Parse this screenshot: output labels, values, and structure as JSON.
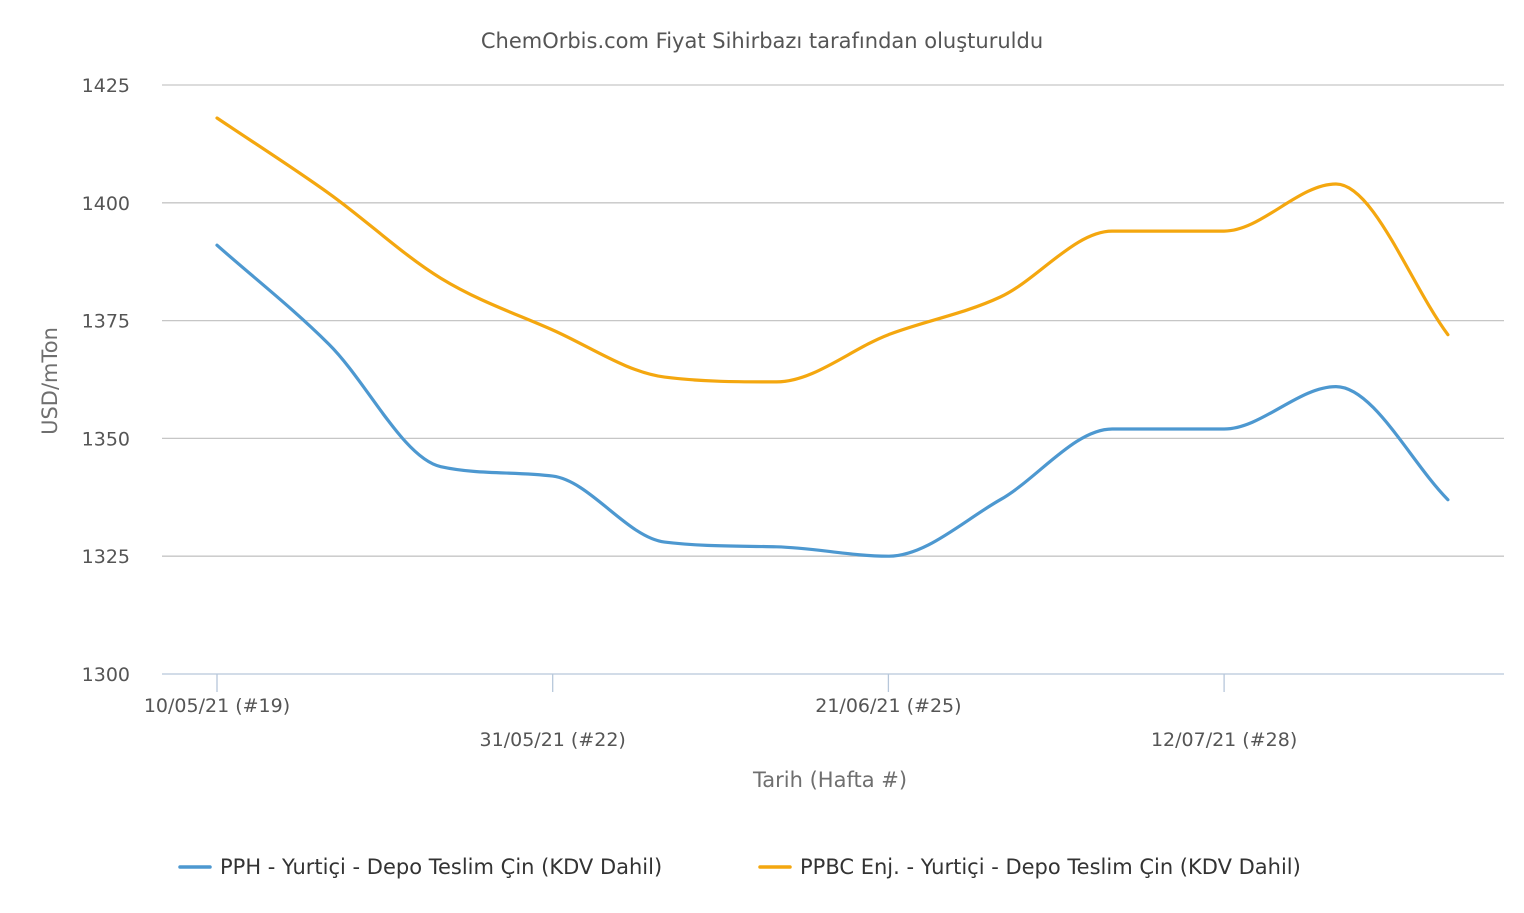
{
  "chart_data": {
    "type": "line",
    "title": "ChemOrbis.com Fiyat Sihirbazı tarafından oluşturuldu",
    "xlabel": "Tarih (Hafta #)",
    "ylabel": "USD/mTon",
    "ylim": [
      1300,
      1425
    ],
    "yticks": [
      1300,
      1325,
      1350,
      1375,
      1400,
      1425
    ],
    "grid": true,
    "legend_position": "bottom",
    "x_tick_labels": [
      {
        "week": 19,
        "label": "10/05/21 (#19)"
      },
      {
        "week": 22,
        "label": "31/05/21 (#22)"
      },
      {
        "week": 25,
        "label": "21/06/21 (#25)"
      },
      {
        "week": 28,
        "label": "12/07/21 (#28)"
      }
    ],
    "x": [
      19,
      20,
      21,
      22,
      23,
      24,
      25,
      26,
      27,
      28,
      29,
      30
    ],
    "series": [
      {
        "name": "PPH - Yurtiçi - Depo Teslim Çin (KDV Dahil)",
        "color": "#4d98d0",
        "values": [
          1391,
          1370,
          1344,
          1342,
          1328,
          1327,
          1325,
          1337,
          1352,
          1352,
          1361,
          1337
        ]
      },
      {
        "name": "PPBC Enj. - Yurtiçi - Depo Teslim Çin (KDV Dahil)",
        "color": "#f4a70f",
        "values": [
          1418,
          1402,
          1384,
          1373,
          1363,
          1362,
          1372,
          1380,
          1394,
          1394,
          1404,
          1372
        ]
      }
    ]
  }
}
